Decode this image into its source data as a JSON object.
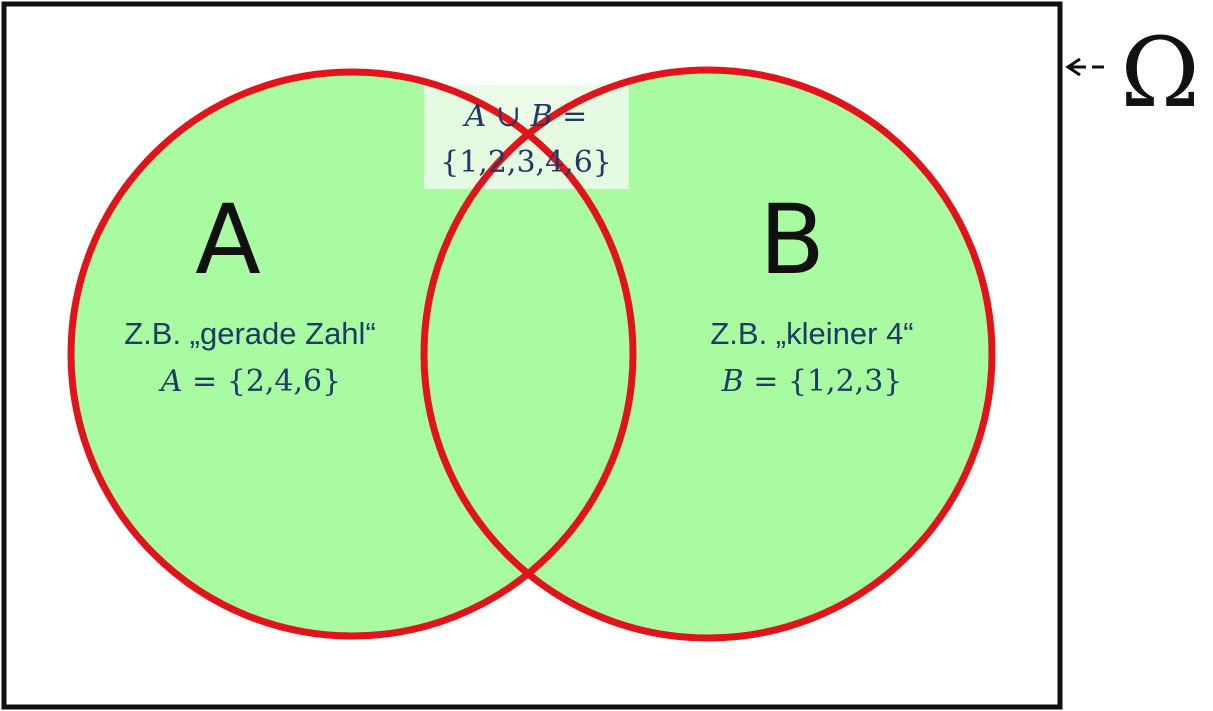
{
  "universe": {
    "symbol": "Ω"
  },
  "set_a": {
    "letter": "A",
    "example": "Z.B. „gerade Zahl“",
    "var": "A",
    "eq": " = ",
    "elements": "{2,4,6}"
  },
  "set_b": {
    "letter": "B",
    "example": "Z.B. „kleiner 4“",
    "var": "B",
    "eq": " = ",
    "elements": "{1,2,3}"
  },
  "union": {
    "var_a": "A",
    "op": " ∪ ",
    "var_b": "B",
    "eq": " =",
    "elements": "{1,2,3,4,6}"
  },
  "colors": {
    "fill": "#a8fba0",
    "outline": "#e0141a",
    "text": "#1f3a66",
    "frame": "#111111"
  }
}
